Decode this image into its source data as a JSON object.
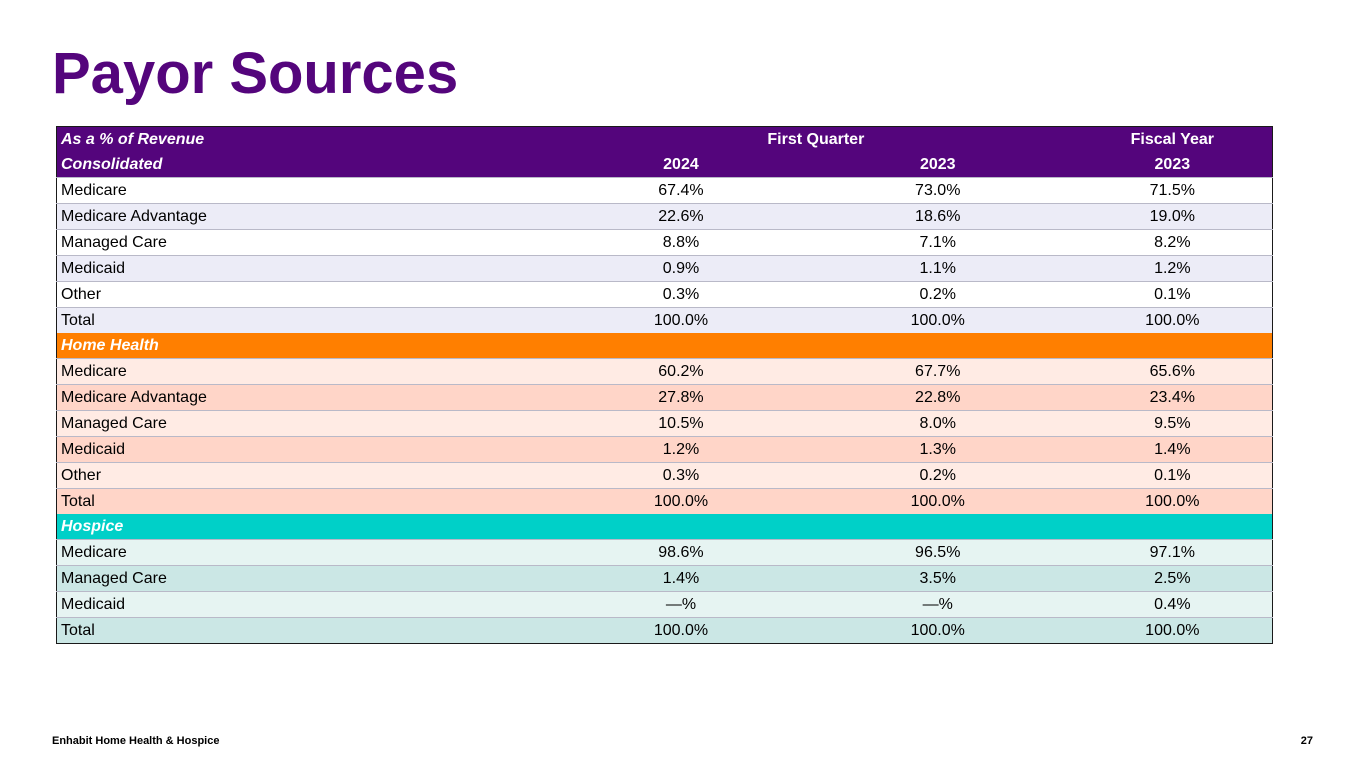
{
  "title": "Payor Sources",
  "table": {
    "header1": {
      "label": "As a % of Revenue",
      "group1": "First Quarter",
      "group2": "Fiscal Year"
    },
    "header2": {
      "label": "Consolidated",
      "col1": "2024",
      "col2": "2023",
      "col3": "2023"
    },
    "consolidated": [
      {
        "label": "Medicare",
        "v1": "67.4%",
        "v2": "73.0%",
        "v3": "71.5%"
      },
      {
        "label": "Medicare Advantage",
        "v1": "22.6%",
        "v2": "18.6%",
        "v3": "19.0%"
      },
      {
        "label": "Managed Care",
        "v1": "8.8%",
        "v2": "7.1%",
        "v3": "8.2%"
      },
      {
        "label": "Medicaid",
        "v1": "0.9%",
        "v2": "1.1%",
        "v3": "1.2%"
      },
      {
        "label": "Other",
        "v1": "0.3%",
        "v2": "0.2%",
        "v3": "0.1%"
      },
      {
        "label": "Total",
        "v1": "100.0%",
        "v2": "100.0%",
        "v3": "100.0%"
      }
    ],
    "home_health_label": "Home Health",
    "home_health": [
      {
        "label": "Medicare",
        "v1": "60.2%",
        "v2": "67.7%",
        "v3": "65.6%"
      },
      {
        "label": "Medicare Advantage",
        "v1": "27.8%",
        "v2": "22.8%",
        "v3": "23.4%"
      },
      {
        "label": "Managed Care",
        "v1": "10.5%",
        "v2": "8.0%",
        "v3": "9.5%"
      },
      {
        "label": "Medicaid",
        "v1": "1.2%",
        "v2": "1.3%",
        "v3": "1.4%"
      },
      {
        "label": "Other",
        "v1": "0.3%",
        "v2": "0.2%",
        "v3": "0.1%"
      },
      {
        "label": "Total",
        "v1": "100.0%",
        "v2": "100.0%",
        "v3": "100.0%"
      }
    ],
    "hospice_label": "Hospice",
    "hospice": [
      {
        "label": "Medicare",
        "v1": "98.6%",
        "v2": "96.5%",
        "v3": "97.1%"
      },
      {
        "label": "Managed Care",
        "v1": "1.4%",
        "v2": "3.5%",
        "v3": "2.5%"
      },
      {
        "label": "Medicaid",
        "v1": "—%",
        "v2": "—%",
        "v3": "0.4%"
      },
      {
        "label": "Total",
        "v1": "100.0%",
        "v2": "100.0%",
        "v3": "100.0%"
      }
    ]
  },
  "footer": {
    "company": "Enhabit Home Health & Hospice",
    "page": "27"
  },
  "colors": {
    "purple": "#54057c",
    "orange": "#ff7f00",
    "teal": "#00d0c8"
  }
}
